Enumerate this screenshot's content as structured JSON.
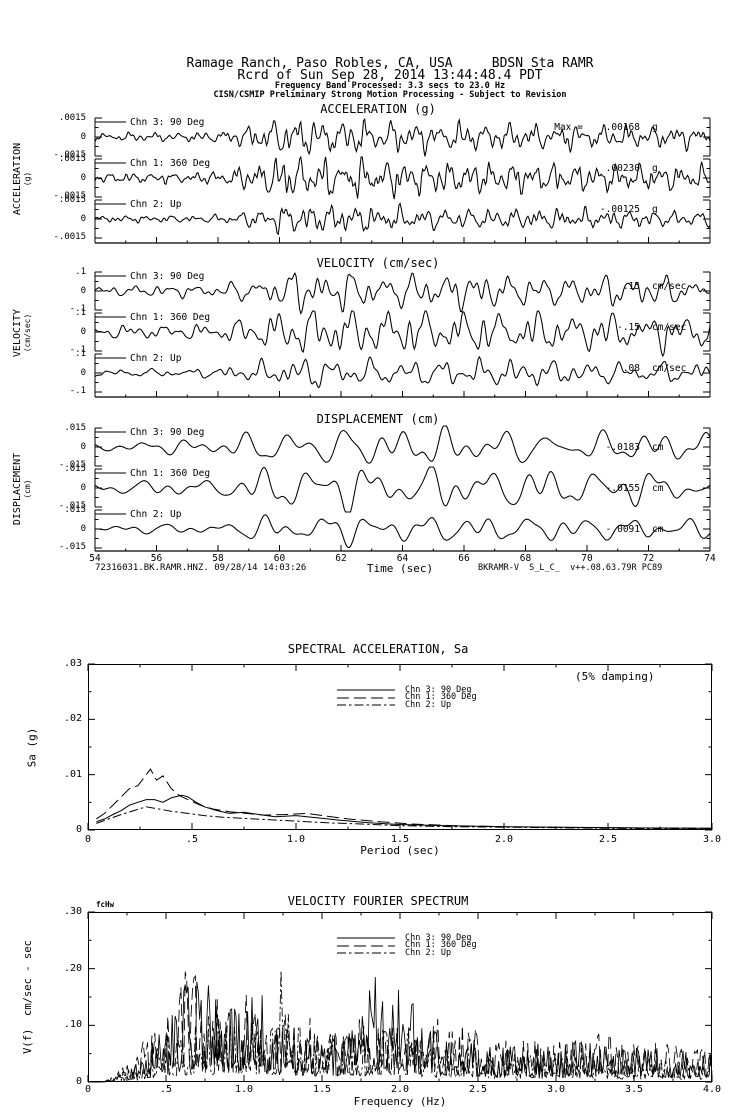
{
  "header": {
    "station_line": "Ramage Ranch, Paso Robles, CA, USA     BDSN Sta RAMR",
    "record_line": "Rcrd of Sun Sep 28, 2014 13:44:48.4 PDT",
    "band_line": "Frequency Band Processed: 3.3 secs to 23.0 Hz",
    "processing_line": "CISN/CSMIP Preliminary Strong Motion Processing - Subject to Revision"
  },
  "footer": {
    "record_id": "72316031.BK.RAMR.HNZ. 09/28/14 14:03:26",
    "processing_id": "BKRAMR-V  S_L_C_  v++.08.63.79R PC89"
  },
  "chart_data": [
    {
      "id": "acceleration",
      "type": "line",
      "title": "ACCELERATION (g)",
      "side_label_main": "ACCELERATION",
      "side_label_unit": "(g)",
      "x_range": [
        54,
        74
      ],
      "components": 7,
      "envelope": [
        [
          0,
          0.22
        ],
        [
          0.18,
          0.25
        ],
        [
          0.24,
          0.5
        ],
        [
          0.3,
          1.0
        ],
        [
          0.4,
          0.9
        ],
        [
          0.55,
          0.75
        ],
        [
          0.7,
          0.68
        ],
        [
          0.85,
          0.6
        ],
        [
          1,
          0.55
        ]
      ],
      "channels": [
        {
          "label": "Chn 3: 90 Deg",
          "yticks": [
            ".0015",
            "0",
            "-.0015"
          ],
          "ylim": [
            -0.0015,
            0.0015
          ],
          "max_label": "Max =    .00168",
          "max_unit": "g",
          "peak_value": 0.00168,
          "seed": 101,
          "cycles": 56,
          "amp": 13
        },
        {
          "label": "Chn 1: 360 Deg",
          "yticks": [
            ".0015",
            "0",
            "-.0015"
          ],
          "ylim": [
            -0.0015,
            0.0015
          ],
          "max_label": ".00230",
          "max_unit": "g",
          "peak_value": 0.0023,
          "seed": 102,
          "cycles": 56,
          "amp": 15
        },
        {
          "label": "Chn 2: Up",
          "yticks": [
            ".0015",
            "0",
            "-.0015"
          ],
          "ylim": [
            -0.0015,
            0.0015
          ],
          "max_label": "-.00125",
          "max_unit": "g",
          "peak_value": -0.00125,
          "seed": 103,
          "cycles": 56,
          "amp": 10
        }
      ]
    },
    {
      "id": "velocity",
      "type": "line",
      "title": "VELOCITY (cm/sec)",
      "side_label_main": "VELOCITY",
      "side_label_unit": "(cm/sec)",
      "x_range": [
        54,
        74
      ],
      "components": 6,
      "envelope": [
        [
          0,
          0.25
        ],
        [
          0.18,
          0.3
        ],
        [
          0.26,
          0.6
        ],
        [
          0.33,
          1.0
        ],
        [
          0.45,
          0.9
        ],
        [
          0.6,
          0.85
        ],
        [
          0.8,
          0.75
        ],
        [
          1,
          0.7
        ]
      ],
      "channels": [
        {
          "label": "Chn 3: 90 Deg",
          "yticks": [
            ".1",
            "0",
            "-.1"
          ],
          "ylim": [
            -0.1,
            0.1
          ],
          "max_label": ".15",
          "max_unit": "cm/sec",
          "peak_value": 0.15,
          "seed": 104,
          "cycles": 36,
          "amp": 13
        },
        {
          "label": "Chn 1: 360 Deg",
          "yticks": [
            ".1",
            "0",
            "-.1"
          ],
          "ylim": [
            -0.1,
            0.1
          ],
          "max_label": "-.15",
          "max_unit": "cm/sec",
          "peak_value": -0.15,
          "seed": 105,
          "cycles": 36,
          "amp": 16
        },
        {
          "label": "Chn 2: Up",
          "yticks": [
            ".1",
            "0",
            "-.1"
          ],
          "ylim": [
            -0.1,
            0.1
          ],
          "max_label": ".08",
          "max_unit": "cm/sec",
          "peak_value": 0.08,
          "seed": 106,
          "cycles": 36,
          "amp": 10
        }
      ]
    },
    {
      "id": "displacement",
      "type": "line",
      "title": "DISPLACEMENT (cm)",
      "side_label_main": "DISPLACEMENT",
      "side_label_unit": "(cm)",
      "x_range": [
        54,
        74
      ],
      "components": 4,
      "xlabel": "Time (sec)",
      "xticks": [
        {
          "v": 54,
          "label": "54"
        },
        {
          "v": 56,
          "label": "56"
        },
        {
          "v": 58,
          "label": "58"
        },
        {
          "v": 60,
          "label": "60"
        },
        {
          "v": 62,
          "label": "62"
        },
        {
          "v": 64,
          "label": "64"
        },
        {
          "v": 66,
          "label": "66"
        },
        {
          "v": 68,
          "label": "68"
        },
        {
          "v": 70,
          "label": "70"
        },
        {
          "v": 72,
          "label": "72"
        },
        {
          "v": 74,
          "label": "74"
        }
      ],
      "envelope": [
        [
          0,
          0.25
        ],
        [
          0.2,
          0.35
        ],
        [
          0.28,
          0.8
        ],
        [
          0.35,
          1.0
        ],
        [
          0.5,
          0.85
        ],
        [
          0.7,
          0.8
        ],
        [
          1,
          0.6
        ]
      ],
      "channels": [
        {
          "label": "Chn 3: 90 Deg",
          "yticks": [
            ".015",
            "0",
            "-.015"
          ],
          "ylim": [
            -0.015,
            0.015
          ],
          "max_label": "-.0183",
          "max_unit": "cm",
          "peak_value": -0.0183,
          "seed": 107,
          "cycles": 22,
          "amp": 12
        },
        {
          "label": "Chn 1: 360 Deg",
          "yticks": [
            ".015",
            "0",
            "-.015"
          ],
          "ylim": [
            -0.015,
            0.015
          ],
          "max_label": "-.0155",
          "max_unit": "cm",
          "peak_value": -0.0155,
          "seed": 108,
          "cycles": 22,
          "amp": 14
        },
        {
          "label": "Chn 2: Up",
          "yticks": [
            ".015",
            "0",
            "-.015"
          ],
          "ylim": [
            -0.015,
            0.015
          ],
          "max_label": "-.0091",
          "max_unit": "cm",
          "peak_value": -0.0091,
          "seed": 109,
          "cycles": 22,
          "amp": 9
        }
      ]
    },
    {
      "id": "spectral_acceleration",
      "type": "line",
      "title": "SPECTRAL ACCELERATION, Sa",
      "annotation": "(5% damping)",
      "xlabel": "Period (sec)",
      "ylabel": "Sa (g)",
      "xlim": [
        0,
        3
      ],
      "ylim": [
        0,
        0.03
      ],
      "grid": false,
      "legend_position": "upper-center-inside",
      "xticks": [
        {
          "v": 0,
          "label": "0"
        },
        {
          "v": 0.5,
          "label": ".5"
        },
        {
          "v": 1,
          "label": "1.0"
        },
        {
          "v": 1.5,
          "label": "1.5"
        },
        {
          "v": 2,
          "label": "2.0"
        },
        {
          "v": 2.5,
          "label": "2.5"
        },
        {
          "v": 3,
          "label": "3.0"
        }
      ],
      "yticks": [
        {
          "v": 0.03,
          "label": ".03"
        },
        {
          "v": 0.02,
          "label": ".02"
        },
        {
          "v": 0.01,
          "label": ".01"
        },
        {
          "v": 0,
          "label": "0"
        }
      ],
      "legend": [
        {
          "label": "Chn 3: 90 Deg",
          "dash": "solid"
        },
        {
          "label": "Chn 1: 360 Deg",
          "dash": "longdash"
        },
        {
          "label": "Chn 2: Up",
          "dash": "dashdot"
        }
      ],
      "series": [
        {
          "name": "Chn 3: 90 Deg",
          "dash": "solid",
          "points": [
            [
              0.04,
              0.0015
            ],
            [
              0.08,
              0.002
            ],
            [
              0.12,
              0.0028
            ],
            [
              0.16,
              0.0035
            ],
            [
              0.2,
              0.0045
            ],
            [
              0.24,
              0.005
            ],
            [
              0.28,
              0.0055
            ],
            [
              0.32,
              0.0055
            ],
            [
              0.36,
              0.005
            ],
            [
              0.4,
              0.0058
            ],
            [
              0.45,
              0.0063
            ],
            [
              0.48,
              0.006
            ],
            [
              0.52,
              0.005
            ],
            [
              0.56,
              0.0042
            ],
            [
              0.62,
              0.0035
            ],
            [
              0.68,
              0.003
            ],
            [
              0.75,
              0.0032
            ],
            [
              0.82,
              0.0028
            ],
            [
              0.9,
              0.0024
            ],
            [
              1.0,
              0.0026
            ],
            [
              1.1,
              0.0022
            ],
            [
              1.2,
              0.0018
            ],
            [
              1.35,
              0.0013
            ],
            [
              1.5,
              0.001
            ],
            [
              1.7,
              0.0008
            ],
            [
              2.0,
              0.0006
            ],
            [
              2.3,
              0.0005
            ],
            [
              2.6,
              0.0004
            ],
            [
              3.0,
              0.0003
            ]
          ]
        },
        {
          "name": "Chn 1: 360 Deg",
          "dash": "longdash",
          "points": [
            [
              0.04,
              0.002
            ],
            [
              0.08,
              0.003
            ],
            [
              0.12,
              0.0045
            ],
            [
              0.16,
              0.006
            ],
            [
              0.2,
              0.0075
            ],
            [
              0.24,
              0.008
            ],
            [
              0.27,
              0.0095
            ],
            [
              0.3,
              0.011
            ],
            [
              0.33,
              0.009
            ],
            [
              0.36,
              0.0098
            ],
            [
              0.4,
              0.0075
            ],
            [
              0.44,
              0.0062
            ],
            [
              0.48,
              0.0055
            ],
            [
              0.54,
              0.0045
            ],
            [
              0.6,
              0.0038
            ],
            [
              0.68,
              0.0033
            ],
            [
              0.76,
              0.003
            ],
            [
              0.85,
              0.0027
            ],
            [
              0.95,
              0.0028
            ],
            [
              1.05,
              0.003
            ],
            [
              1.15,
              0.0025
            ],
            [
              1.25,
              0.002
            ],
            [
              1.4,
              0.0015
            ],
            [
              1.55,
              0.0011
            ],
            [
              1.75,
              0.0008
            ],
            [
              2.0,
              0.0006
            ],
            [
              2.4,
              0.0004
            ],
            [
              3.0,
              0.0003
            ]
          ]
        },
        {
          "name": "Chn 2: Up",
          "dash": "dashdot",
          "points": [
            [
              0.04,
              0.0012
            ],
            [
              0.1,
              0.002
            ],
            [
              0.16,
              0.0028
            ],
            [
              0.22,
              0.0035
            ],
            [
              0.28,
              0.0042
            ],
            [
              0.34,
              0.0038
            ],
            [
              0.4,
              0.0034
            ],
            [
              0.48,
              0.003
            ],
            [
              0.56,
              0.0026
            ],
            [
              0.65,
              0.0023
            ],
            [
              0.75,
              0.0021
            ],
            [
              0.85,
              0.0019
            ],
            [
              1.0,
              0.0016
            ],
            [
              1.15,
              0.0013
            ],
            [
              1.3,
              0.0011
            ],
            [
              1.5,
              0.0008
            ],
            [
              1.75,
              0.0006
            ],
            [
              2.0,
              0.0005
            ],
            [
              2.5,
              0.0003
            ],
            [
              3.0,
              0.0002
            ]
          ]
        }
      ]
    },
    {
      "id": "velocity_fourier_spectrum",
      "type": "line",
      "title": "VELOCITY FOURIER SPECTRUM",
      "corner_label": "fcHw",
      "xlabel": "Frequency (Hz)",
      "ylabel": "V(f)  cm/sec - sec",
      "xlim": [
        0,
        4
      ],
      "ylim": [
        0,
        0.3
      ],
      "grid": false,
      "legend_position": "upper-center-inside",
      "xticks": [
        {
          "v": 0,
          "label": "0"
        },
        {
          "v": 0.5,
          "label": ".5"
        },
        {
          "v": 1,
          "label": "1.0"
        },
        {
          "v": 1.5,
          "label": "1.5"
        },
        {
          "v": 2,
          "label": "2.0"
        },
        {
          "v": 2.5,
          "label": "2.5"
        },
        {
          "v": 3,
          "label": "3.0"
        },
        {
          "v": 3.5,
          "label": "3.5"
        },
        {
          "v": 4,
          "label": "4.0"
        }
      ],
      "yticks": [
        {
          "v": 0.3,
          "label": ".30"
        },
        {
          "v": 0.2,
          "label": ".20"
        },
        {
          "v": 0.1,
          "label": ".10"
        },
        {
          "v": 0,
          "label": "0"
        }
      ],
      "legend": [
        {
          "label": "Chn 3: 90 Deg",
          "dash": "solid"
        },
        {
          "label": "Chn 1: 360 Deg",
          "dash": "longdash"
        },
        {
          "label": "Chn 2: Up",
          "dash": "dashdot"
        }
      ],
      "series": [
        {
          "name": "Chn 3: 90 Deg",
          "dash": "solid",
          "seed": 201,
          "envelope": [
            [
              0.1,
              0.0
            ],
            [
              0.25,
              0.02
            ],
            [
              0.4,
              0.07
            ],
            [
              0.55,
              0.13
            ],
            [
              0.65,
              0.19
            ],
            [
              0.75,
              0.21
            ],
            [
              0.85,
              0.15
            ],
            [
              0.95,
              0.13
            ],
            [
              1.05,
              0.26
            ],
            [
              1.15,
              0.12
            ],
            [
              1.3,
              0.09
            ],
            [
              1.5,
              0.08
            ],
            [
              1.7,
              0.12
            ],
            [
              1.85,
              0.2
            ],
            [
              2.0,
              0.2
            ],
            [
              2.15,
              0.1
            ],
            [
              2.35,
              0.08
            ],
            [
              2.6,
              0.07
            ],
            [
              2.9,
              0.06
            ],
            [
              3.2,
              0.08
            ],
            [
              3.5,
              0.07
            ],
            [
              3.8,
              0.06
            ],
            [
              4.0,
              0.05
            ]
          ]
        },
        {
          "name": "Chn 1: 360 Deg",
          "dash": "longdash",
          "seed": 202,
          "envelope": [
            [
              0.1,
              0.0
            ],
            [
              0.25,
              0.03
            ],
            [
              0.4,
              0.09
            ],
            [
              0.55,
              0.16
            ],
            [
              0.65,
              0.21
            ],
            [
              0.8,
              0.16
            ],
            [
              0.95,
              0.12
            ],
            [
              1.05,
              0.18
            ],
            [
              1.2,
              0.1
            ],
            [
              1.4,
              0.12
            ],
            [
              1.6,
              0.09
            ],
            [
              1.8,
              0.12
            ],
            [
              2.0,
              0.1
            ],
            [
              2.2,
              0.12
            ],
            [
              2.45,
              0.1
            ],
            [
              2.7,
              0.08
            ],
            [
              3.0,
              0.07
            ],
            [
              3.3,
              0.09
            ],
            [
              3.6,
              0.07
            ],
            [
              4.0,
              0.06
            ]
          ]
        },
        {
          "name": "Chn 2: Up",
          "dash": "dashdot",
          "seed": 203,
          "envelope": [
            [
              0.1,
              0.0
            ],
            [
              0.3,
              0.03
            ],
            [
              0.5,
              0.08
            ],
            [
              0.7,
              0.1
            ],
            [
              0.9,
              0.12
            ],
            [
              1.1,
              0.1
            ],
            [
              1.25,
              0.23
            ],
            [
              1.35,
              0.1
            ],
            [
              1.55,
              0.08
            ],
            [
              1.8,
              0.09
            ],
            [
              2.0,
              0.1
            ],
            [
              2.2,
              0.07
            ],
            [
              2.5,
              0.06
            ],
            [
              2.8,
              0.05
            ],
            [
              3.1,
              0.05
            ],
            [
              3.5,
              0.04
            ],
            [
              4.0,
              0.04
            ]
          ]
        }
      ]
    }
  ]
}
